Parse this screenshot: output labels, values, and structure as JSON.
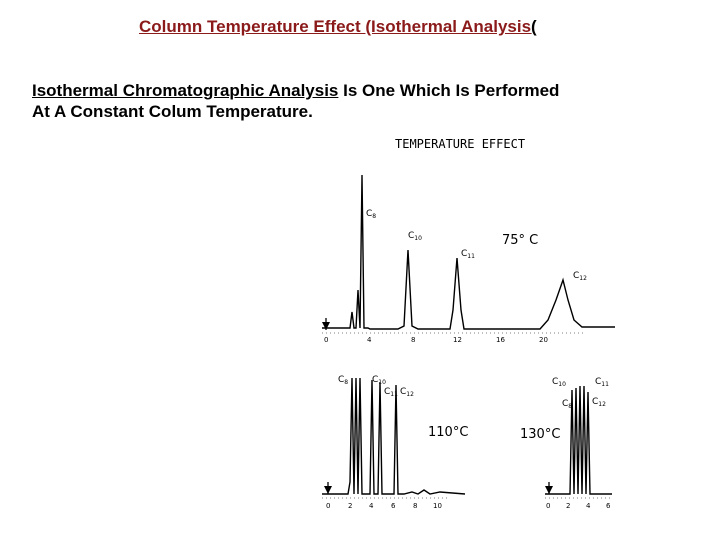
{
  "slide": {
    "title": "Column Temperature Effect (Isothermal Analysis",
    "title_paren": "(",
    "para_underlined": "Isothermal Chromatographic Analysis",
    "para_rest_line1": " Is One Which Is Performed",
    "para_line2": "At A Constant Colum Temperature."
  },
  "figure": {
    "heading": "TEMPERATURE EFFECT",
    "panels": [
      {
        "temperature": "75° C",
        "peaks": [
          {
            "label": "C",
            "sub": "8"
          },
          {
            "label": "C",
            "sub": "10"
          },
          {
            "label": "C",
            "sub": "11"
          },
          {
            "label": "C",
            "sub": "12"
          }
        ],
        "ticks": [
          "0",
          "4",
          "8",
          "12",
          "16",
          "20"
        ]
      },
      {
        "temperature": "110°C",
        "peaks": [
          {
            "label": "C",
            "sub": "8"
          },
          {
            "label": "C",
            "sub": "10"
          },
          {
            "label": "C",
            "sub": "11"
          },
          {
            "label": "C",
            "sub": "12"
          }
        ],
        "ticks": [
          "0",
          "2",
          "4",
          "6",
          "8",
          "10"
        ]
      },
      {
        "temperature": "130°C",
        "peaks": [
          {
            "label": "C",
            "sub": "10"
          },
          {
            "label": "C",
            "sub": "8"
          },
          {
            "label": "C",
            "sub": "11"
          },
          {
            "label": "C",
            "sub": "12"
          }
        ],
        "ticks": [
          "0",
          "2",
          "4",
          "6"
        ]
      }
    ]
  }
}
